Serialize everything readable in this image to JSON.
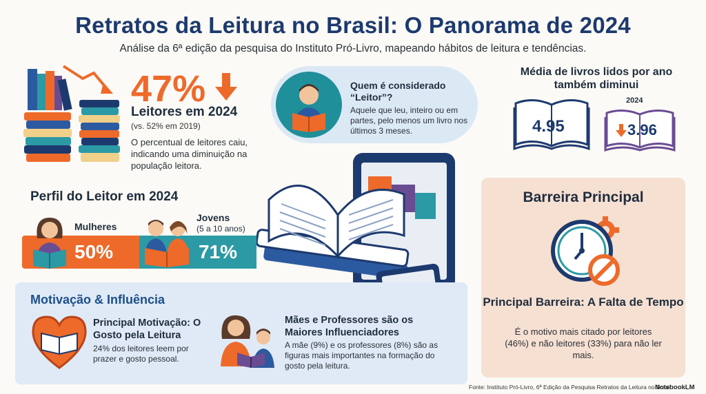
{
  "header": {
    "title": "Retratos da Leitura no Brasil: O Panorama de 2024",
    "subtitle": "Análise da 6ª edição da pesquisa do Instituto Pró-Livro, mapeando hábitos de leitura e tendências."
  },
  "readers": {
    "percent": "47%",
    "label": "Leitores em 2024",
    "comparison": "(vs. 52% em 2019)",
    "description": "O percentual de leitores caiu, indicando uma diminuição na população leitora."
  },
  "who_reader": {
    "title": "Quem é considerado “Leitor”?",
    "description": "Aquele que leu, inteiro ou em partes, pelo menos um livro nos últimos 3 meses."
  },
  "average_books": {
    "title": "Média de livros lidos por ano também diminui",
    "year": "2024",
    "value_before": "4.95",
    "value_2024": "3.96"
  },
  "profile": {
    "title": "Perfil do Leitor em 2024",
    "women_label": "Mulheres",
    "women_value": "50%",
    "youth_label": "Jovens",
    "youth_sub": "(5 a 10 anos)",
    "youth_value": "71%"
  },
  "motivation": {
    "title": "Motivação & Influência",
    "main_title": "Principal Motivação: O Gosto pela Leitura",
    "main_desc": "24% dos leitores leem por prazer e gosto pessoal.",
    "influencers_title": "Mães e Professores são os Maiores Influenciadores",
    "influencers_desc": "A mãe (9%) e os professores (8%) são as figuras mais importantes na formação do gosto pela leitura."
  },
  "barrier": {
    "title": "Barreira Principal",
    "subtitle": "Principal Barreira: A Falta de Tempo",
    "description": "É o motivo mais citado por leitores (46%) e não leitores (33%) para não ler mais."
  },
  "footer": {
    "source": "Fonte: Instituto Pró-Livro, 6ª Edição da Pesquisa Retratos da Leitura no Brasil",
    "brand": "NotebookLM"
  },
  "colors": {
    "title_blue": "#1d3a6e",
    "accent_orange": "#ee6a2a",
    "teal": "#2c9aa5",
    "panel_blue": "#dfeaf6",
    "panel_peach": "#f6e0d2"
  }
}
